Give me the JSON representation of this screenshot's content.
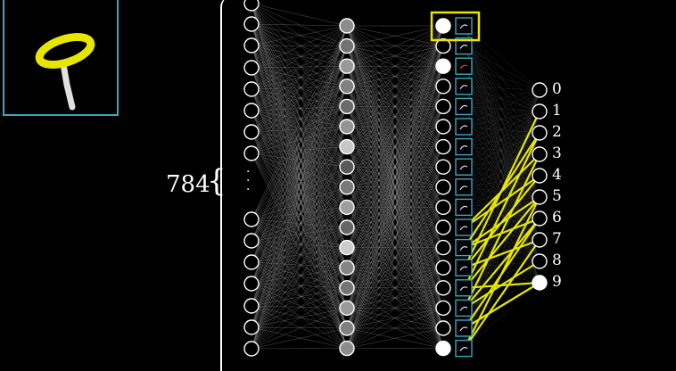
{
  "input_count_label": "784",
  "output_labels": [
    "0",
    "1",
    "2",
    "3",
    "4",
    "5",
    "6",
    "7",
    "8",
    "9"
  ],
  "highlighted_output": "9",
  "colors": {
    "accent_yellow": "#e6e600",
    "frame_blue": "#3aa6c2",
    "edge_gray": "#9a9a9a"
  },
  "layers": {
    "input_visible": 16,
    "hidden1_values": [
      0.55,
      0.45,
      0.6,
      0.5,
      0.42,
      0.58,
      0.78,
      0.35,
      0.48,
      0.62,
      0.4,
      0.8,
      0.52,
      0.46,
      0.6,
      0.5,
      0.55
    ],
    "hidden2_values": [
      1.0,
      0.0,
      1.0,
      0.0,
      0.0,
      0.0,
      0.0,
      0.0,
      0.0,
      0.0,
      0.0,
      0.0,
      0.0,
      0.0,
      0.0,
      0.0,
      1.0
    ],
    "output_values": [
      0,
      0,
      0,
      0,
      0,
      0,
      0,
      0,
      0,
      1
    ]
  }
}
